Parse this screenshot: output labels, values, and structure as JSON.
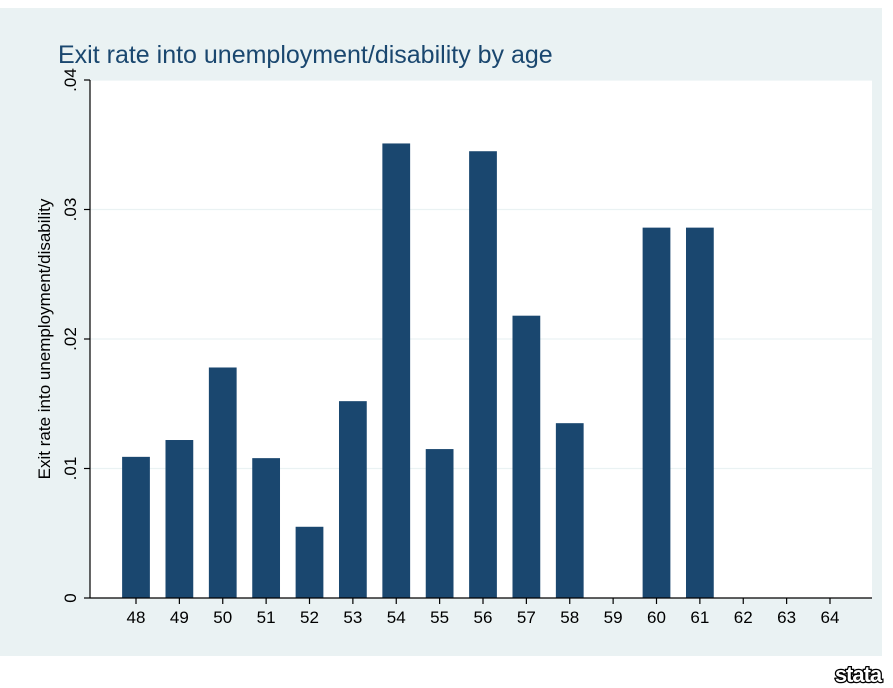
{
  "colors": {
    "panel_background": "#eaf2f3",
    "plot_background": "#ffffff",
    "bar": "#1a476f",
    "title": "#1a476f",
    "gridline": "#eaf2f3",
    "axis": "#000000"
  },
  "logo": {
    "text": "stata"
  },
  "chart_data": {
    "type": "bar",
    "title": "Exit rate into unemployment/disability by age",
    "xlabel": "",
    "ylabel": "Exit rate into unemployment/disability",
    "categories": [
      "48",
      "49",
      "50",
      "51",
      "52",
      "53",
      "54",
      "55",
      "56",
      "57",
      "58",
      "59",
      "60",
      "61",
      "62",
      "63",
      "64"
    ],
    "series": [
      {
        "values": [
          0.0109,
          0.0122,
          0.0178,
          0.0108,
          0.0055,
          0.0152,
          0.0351,
          0.0115,
          0.0345,
          0.0218,
          0.0135,
          0,
          0.0286,
          0.0286,
          0,
          0,
          0
        ]
      }
    ],
    "ylim": [
      0,
      0.04
    ],
    "yticks": [
      0,
      0.01,
      0.02,
      0.03,
      0.04
    ],
    "ytick_labels": [
      "0",
      ".01",
      ".02",
      ".03",
      ".04"
    ],
    "grid": true,
    "legend": "none"
  }
}
